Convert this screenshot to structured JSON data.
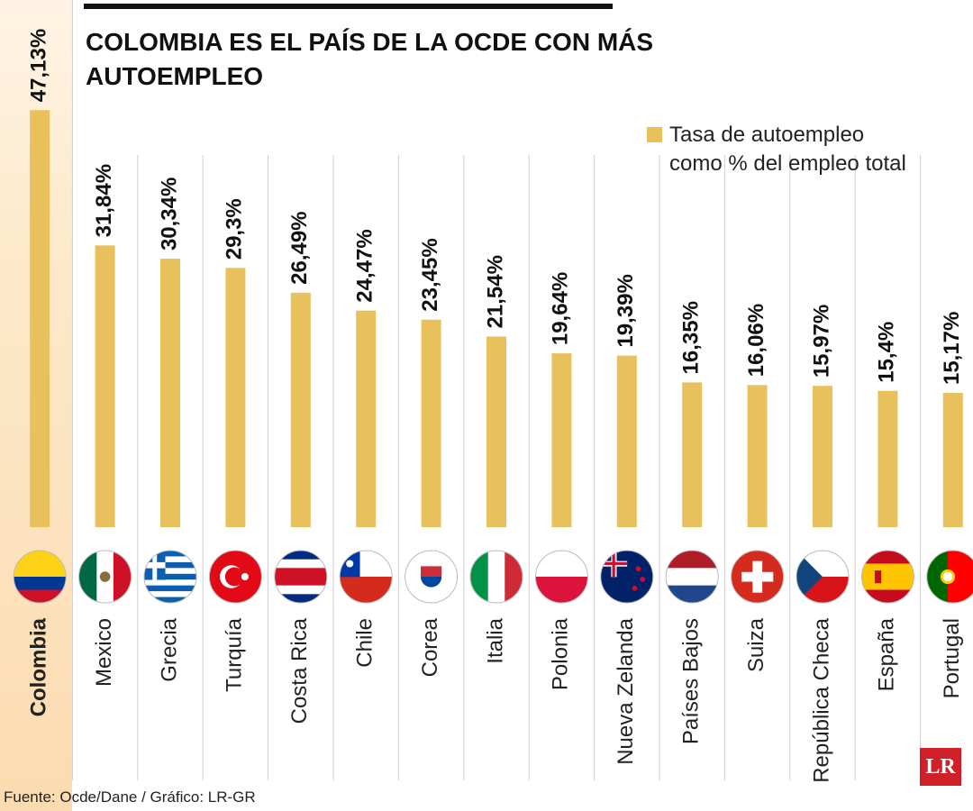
{
  "chart_data": {
    "type": "bar",
    "title": "COLOMBIA ES EL PAÍS DE LA OCDE CON MÁS AUTOEMPLEO",
    "categories": [
      "Colombia",
      "Mexico",
      "Grecia",
      "Turquía",
      "Costa Rica",
      "Chile",
      "Corea",
      "Italia",
      "Polonia",
      "Nueva Zelanda",
      "Países Bajos",
      "Suiza",
      "República Checa",
      "España",
      "Portugal"
    ],
    "series": [
      {
        "name": "Tasa de autoempleo como % del empleo total",
        "color": "#e8c15c",
        "values": [
          47.13,
          31.84,
          30.34,
          29.3,
          26.49,
          24.47,
          23.45,
          21.54,
          19.64,
          19.39,
          16.35,
          16.06,
          15.97,
          15.4,
          15.17
        ],
        "value_labels": [
          "47,13%",
          "31,84%",
          "30,34%",
          "29,3%",
          "26,49%",
          "24,47%",
          "23,45%",
          "21,54%",
          "19,64%",
          "19,39%",
          "16,35%",
          "16,06%",
          "15,97%",
          "15,4%",
          "15,17%"
        ]
      }
    ],
    "source": "Fuente: Ocde/Dane / Gráfico: LR-GR",
    "logo": "LR"
  }
}
